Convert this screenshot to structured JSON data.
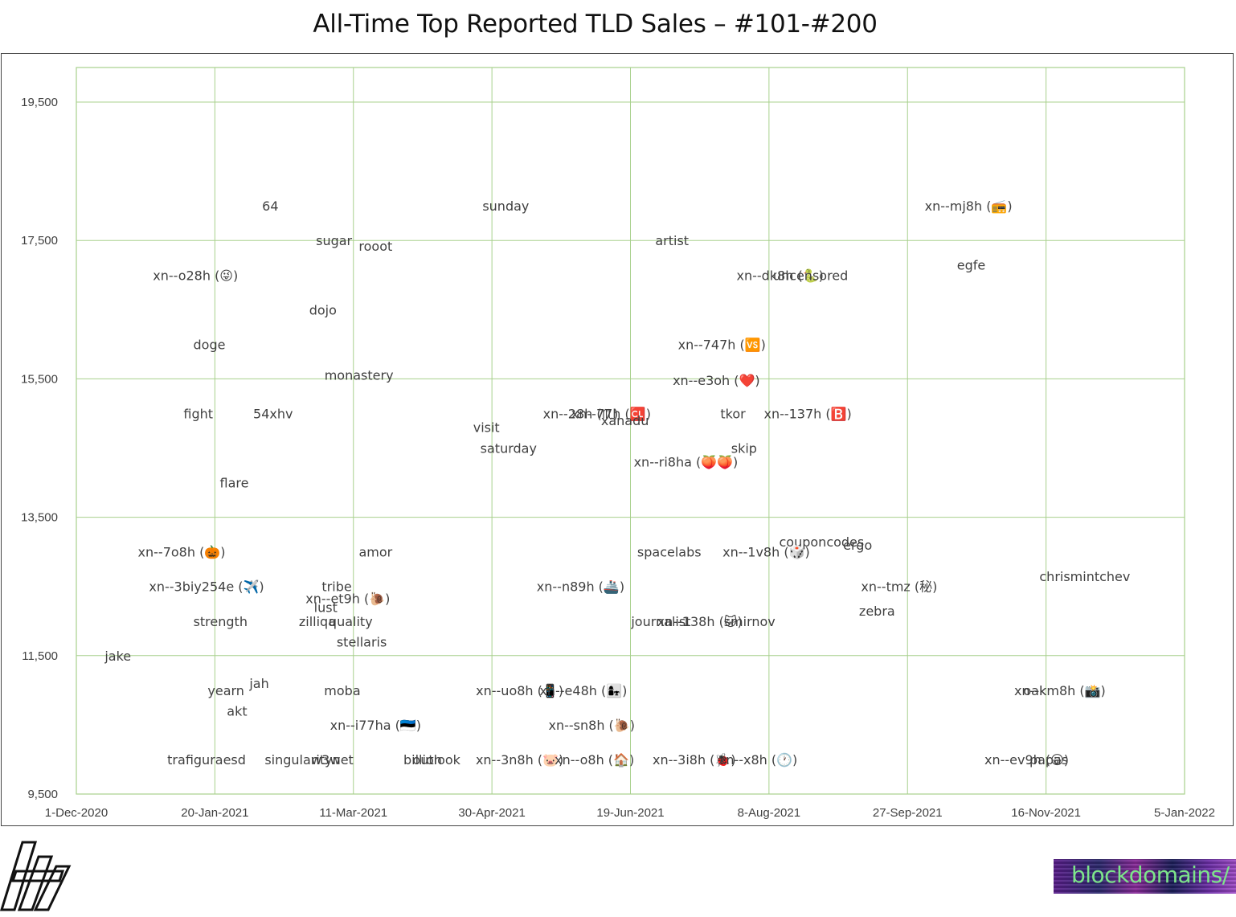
{
  "title": "All-Time Top Reported TLD Sales – #101-#200",
  "colors": {
    "grid": "#a8d08d",
    "text": "#404040",
    "frame": "#444444",
    "brand_text": "#7de58a"
  },
  "brand_logo_text": "blockdomains/",
  "left_logo_icon": "stylized-h-logo-icon",
  "chart_data": {
    "type": "scatter",
    "title": "All-Time Top Reported TLD Sales – #101-#200",
    "xlabel": "",
    "ylabel": "",
    "x_axis_type": "date",
    "xlim": [
      "2020-12-01",
      "2022-01-05"
    ],
    "ylim": [
      9500,
      20000
    ],
    "x_ticks": [
      "1-Dec-2020",
      "20-Jan-2021",
      "11-Mar-2021",
      "30-Apr-2021",
      "19-Jun-2021",
      "8-Aug-2021",
      "27-Sep-2021",
      "16-Nov-2021",
      "5-Jan-2022"
    ],
    "y_ticks": [
      "9,500",
      "11,500",
      "13,500",
      "15,500",
      "17,500",
      "19,500"
    ],
    "grid": true,
    "legend": "none",
    "point_labels": [
      {
        "label": "64",
        "x": "2021-02-09",
        "y": 18000
      },
      {
        "label": "sunday",
        "x": "2021-05-05",
        "y": 18000
      },
      {
        "label": "xn--mj8h (📻)",
        "x": "2021-10-19",
        "y": 18000
      },
      {
        "label": "sugar",
        "x": "2021-03-04",
        "y": 17500
      },
      {
        "label": "rooot",
        "x": "2021-03-19",
        "y": 17420
      },
      {
        "label": "artist",
        "x": "2021-06-34",
        "y": 17500
      },
      {
        "label": "egfe",
        "x": "2021-10-20",
        "y": 17150
      },
      {
        "label": "xn--o28h (😜)",
        "x": "2021-01-13",
        "y": 17000
      },
      {
        "label": "xn--dk8h (🐍)",
        "x": "2021-08-12",
        "y": 17000
      },
      {
        "label": "uncensored",
        "x": "2021-08-23",
        "y": 17000
      },
      {
        "label": "dojo",
        "x": "2021-02-28",
        "y": 16500
      },
      {
        "label": "doge",
        "x": "2021-01-18",
        "y": 16000
      },
      {
        "label": "xn--747h (🆚)",
        "x": "2021-07-22",
        "y": 16000
      },
      {
        "label": "monastery",
        "x": "2021-03-13",
        "y": 15560
      },
      {
        "label": "xn--e3oh (❤️)",
        "x": "2021-07-20",
        "y": 15480
      },
      {
        "label": "fight",
        "x": "2021-01-14",
        "y": 15000
      },
      {
        "label": "54xhv",
        "x": "2021-02-10",
        "y": 15000
      },
      {
        "label": "xn--28h (♏)",
        "x": "2021-06-01",
        "y": 15000
      },
      {
        "label": "xn--77h (🆑)",
        "x": "2021-06-12",
        "y": 15000
      },
      {
        "label": "xanadu",
        "x": "2021-06-17",
        "y": 14900
      },
      {
        "label": "tkor",
        "x": "2021-07-26",
        "y": 15000
      },
      {
        "label": "xn--137h (🅱️)",
        "x": "2021-08-22",
        "y": 15000
      },
      {
        "label": "visit",
        "x": "2021-04-28",
        "y": 14800
      },
      {
        "label": "saturday",
        "x": "2021-05-06",
        "y": 14500
      },
      {
        "label": "skip",
        "x": "2021-07-30",
        "y": 14500
      },
      {
        "label": "xn--ri8ha (🍑🍑)",
        "x": "2021-07-09",
        "y": 14300
      },
      {
        "label": "flare",
        "x": "2021-01-27",
        "y": 14000
      },
      {
        "label": "couponcodes",
        "x": "2021-08-27",
        "y": 13150
      },
      {
        "label": "ergo",
        "x": "2021-09-09",
        "y": 13100
      },
      {
        "label": "xn--7o8h (🎃)",
        "x": "2021-01-08",
        "y": 13000
      },
      {
        "label": "amor",
        "x": "2021-03-19",
        "y": 13000
      },
      {
        "label": "spacelabs",
        "x": "2021-07-03",
        "y": 13000
      },
      {
        "label": "xn--1v8h (🎲)",
        "x": "2021-08-07",
        "y": 13000
      },
      {
        "label": "chrismintchev",
        "x": "2021-11-30",
        "y": 12650
      },
      {
        "label": "xn--3biy254e (✈️)",
        "x": "2021-01-17",
        "y": 12500
      },
      {
        "label": "tribe",
        "x": "2021-03-05",
        "y": 12500
      },
      {
        "label": "xn--et9h (🐌)",
        "x": "2021-03-09",
        "y": 12330
      },
      {
        "label": "lust",
        "x": "2021-03-01",
        "y": 12200
      },
      {
        "label": "xn--n89h (🚢)",
        "x": "2021-06-01",
        "y": 12500
      },
      {
        "label": "xn--tmz (秘)",
        "x": "2021-09-24",
        "y": 12500
      },
      {
        "label": "zebra",
        "x": "2021-09-16",
        "y": 12150
      },
      {
        "label": "strength",
        "x": "2021-01-22",
        "y": 12000
      },
      {
        "label": "zilliqa",
        "x": "2021-02-26",
        "y": 12000
      },
      {
        "label": "quality",
        "x": "2021-03-10",
        "y": 12000
      },
      {
        "label": "journalist",
        "x": "2021-06-30",
        "y": 12000
      },
      {
        "label": "xn--138h (🐱)",
        "x": "2021-07-14",
        "y": 12000
      },
      {
        "label": "smirnov",
        "x": "2021-08-01",
        "y": 12000
      },
      {
        "label": "stellaris",
        "x": "2021-03-14",
        "y": 11700
      },
      {
        "label": "jake",
        "x": "2020-12-16",
        "y": 11500
      },
      {
        "label": "jah",
        "x": "2021-02-05",
        "y": 11100
      },
      {
        "label": "yearn",
        "x": "2021-01-24",
        "y": 11000
      },
      {
        "label": "moba",
        "x": "2021-03-07",
        "y": 11000
      },
      {
        "label": "xn--uo8h (📱)",
        "x": "2021-05-10",
        "y": 11000
      },
      {
        "label": "xn--e48h (👩‍👧)",
        "x": "2021-06-02",
        "y": 11000
      },
      {
        "label": "oak",
        "x": "2021-11-12",
        "y": 11000
      },
      {
        "label": "xn--km8h (📸)",
        "x": "2021-11-21",
        "y": 11000
      },
      {
        "label": "akt",
        "x": "2021-01-28",
        "y": 10700
      },
      {
        "label": "xn--i77ha (🇪🇪)",
        "x": "2021-03-19",
        "y": 10500
      },
      {
        "label": "xn--sn8h (🐌)",
        "x": "2021-06-05",
        "y": 10500
      },
      {
        "label": "trafiguraesd",
        "x": "2021-01-17",
        "y": 10000
      },
      {
        "label": "singularitynet",
        "x": "2021-02-23",
        "y": 10000
      },
      {
        "label": "w3w",
        "x": "2021-03-01",
        "y": 10000
      },
      {
        "label": "billion",
        "x": "2021-04-05",
        "y": 10000
      },
      {
        "label": "outlook",
        "x": "2021-04-10",
        "y": 10000
      },
      {
        "label": "xn--3n8h (🐷)",
        "x": "2021-05-10",
        "y": 10000
      },
      {
        "label": "xn--o8h (🏠)",
        "x": "2021-06-06",
        "y": 10000
      },
      {
        "label": "xn--3i8h (🐞)",
        "x": "2021-07-12",
        "y": 10000
      },
      {
        "label": "xn--x8h (🕐)",
        "x": "2021-08-04",
        "y": 10000
      },
      {
        "label": "xn--ev9h (😀)",
        "x": "2021-11-09",
        "y": 10000
      },
      {
        "label": "papas",
        "x": "2021-11-17",
        "y": 10000
      }
    ]
  }
}
